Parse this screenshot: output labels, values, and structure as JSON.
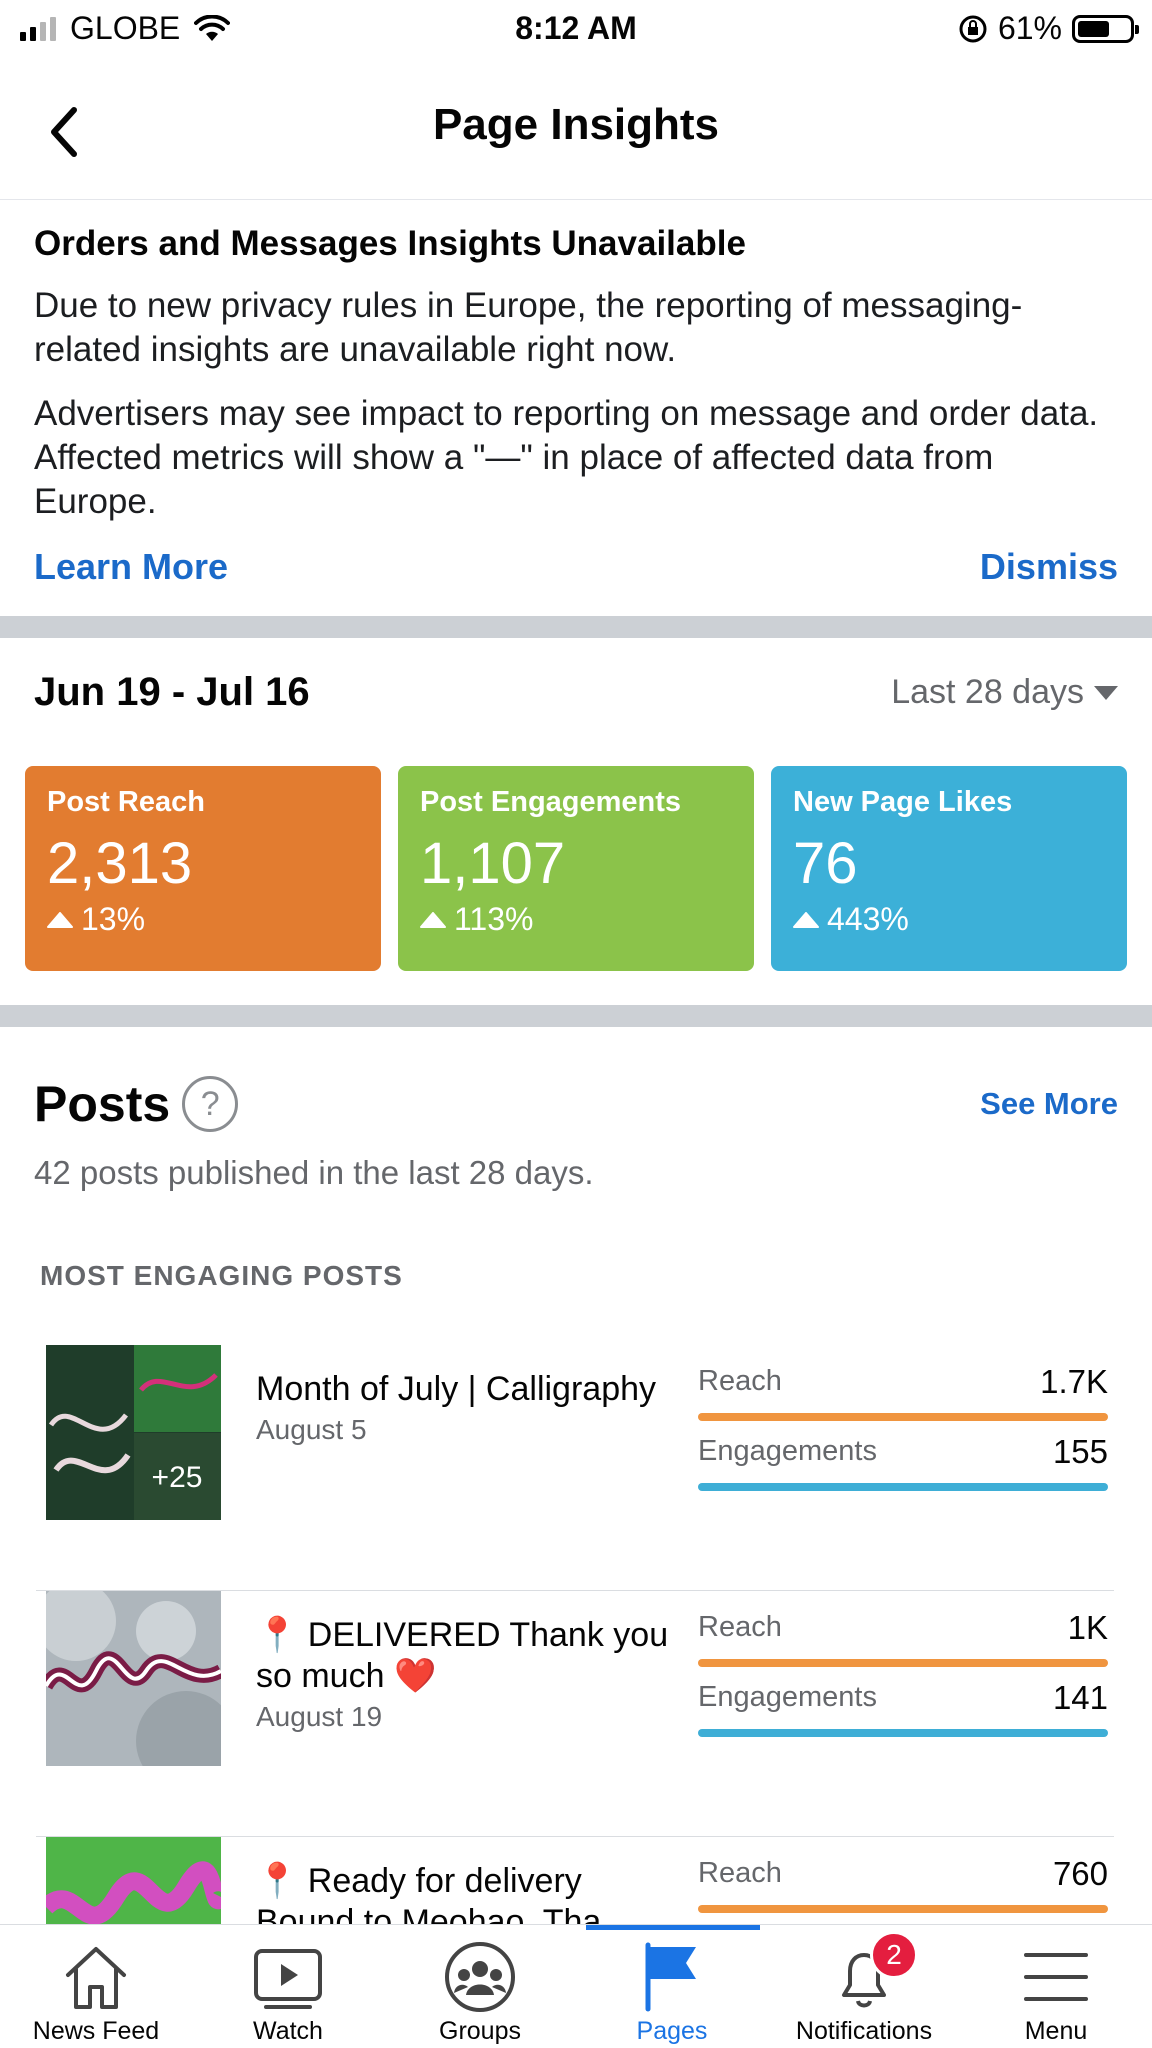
{
  "status_bar": {
    "carrier": "GLOBE",
    "time": "8:12 AM",
    "battery": "61%",
    "battery_level": 0.61
  },
  "header": {
    "title": "Page Insights"
  },
  "notice": {
    "title": "Orders and Messages Insights Unavailable",
    "para1": "Due to new privacy rules in Europe, the reporting of messaging-related insights are unavailable right now.",
    "para2": "Advertisers may see impact to reporting on message and order data. Affected metrics will show a \"—\" in place of affected data from Europe.",
    "learn_more": "Learn More",
    "dismiss": "Dismiss"
  },
  "date_range": {
    "range": "Jun 19 - Jul 16",
    "period": "Last 28 days"
  },
  "metrics": [
    {
      "label": "Post Reach",
      "value": "2,313",
      "change": "13%",
      "color": "#e27c30"
    },
    {
      "label": "Post Engagements",
      "value": "1,107",
      "change": "113%",
      "color": "#8bc34a"
    },
    {
      "label": "New Page Likes",
      "value": "76",
      "change": "443%",
      "color": "#3cb0d8"
    }
  ],
  "posts": {
    "title": "Posts",
    "help": "?",
    "see_more": "See More",
    "subtitle": "42 posts published in the last 28 days.",
    "section_label": "MOST ENGAGING POSTS",
    "items": [
      {
        "title": "Month of July | Calligraphy",
        "date": "August 5",
        "thumb_overlay": "+25",
        "reach_label": "Reach",
        "reach": "1.7K",
        "reach_frac": 1.0,
        "eng_label": "Engagements",
        "engagements": "155",
        "eng_frac": 1.0
      },
      {
        "title": "📍 DELIVERED Thank you so much ❤️",
        "date": "August 19",
        "reach_label": "Reach",
        "reach": "1K",
        "reach_frac": 1.0,
        "eng_label": "Engagements",
        "engagements": "141",
        "eng_frac": 1.0
      },
      {
        "title": "📍 Ready for delivery Bound to Meohao. Tha",
        "reach_label": "Reach",
        "reach": "760",
        "reach_frac": 1.0
      }
    ]
  },
  "tabs": [
    {
      "label": "News Feed",
      "icon": "home-icon"
    },
    {
      "label": "Watch",
      "icon": "watch-icon"
    },
    {
      "label": "Groups",
      "icon": "groups-icon"
    },
    {
      "label": "Pages",
      "icon": "flag-icon",
      "active": true
    },
    {
      "label": "Notifications",
      "icon": "bell-icon",
      "badge": "2"
    },
    {
      "label": "Menu",
      "icon": "menu-icon"
    }
  ]
}
